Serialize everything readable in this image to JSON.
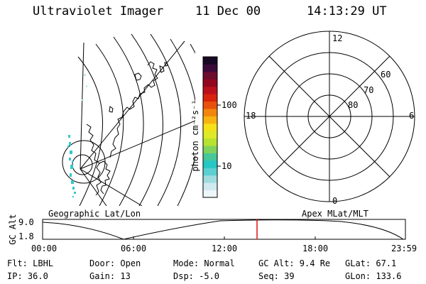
{
  "header": {
    "instrument": "Ultraviolet Imager",
    "date": "11 Dec 00",
    "time": "14:13:29 UT"
  },
  "colorbar": {
    "unit_label": "photon cm⁻²s⁻¹",
    "ticks": [
      "100",
      "10"
    ],
    "colors": [
      "#eef6fa",
      "#cfe9ef",
      "#9fdcdf",
      "#5ccfd0",
      "#25c7c4",
      "#46c79a",
      "#7fd35c",
      "#b7e22f",
      "#dde929",
      "#f6e018",
      "#f7b310",
      "#f2860d",
      "#e8500d",
      "#d8230d",
      "#bb0f1c",
      "#93061f",
      "#6c0c2e",
      "#3b0a3a",
      "#170924"
    ]
  },
  "geo_map": {
    "label": "Geographic Lat/Lon"
  },
  "polar_plot": {
    "label": "Apex MLat/MLT",
    "mlt_labels": {
      "top": "12",
      "left": "18",
      "right": "6",
      "bottom": "0"
    },
    "mlat_labels": [
      "60",
      "70",
      "80"
    ]
  },
  "altitude_plot": {
    "ylabel": "GC Alt",
    "ytick_top": "9.0",
    "ytick_bottom": "1.8",
    "xticks": [
      "00:00",
      "06:00",
      "12:00",
      "18:00",
      "23:59"
    ],
    "marker_color": "#e01010",
    "curve_color": "#000000"
  },
  "info": {
    "flt": "Flt: LBHL",
    "ip": "IP: 36.0",
    "door": "Door: Open",
    "gain": "Gain: 13",
    "mode": "Mode: Normal",
    "dsp": "Dsp:   -5.0",
    "gcalt": "GC Alt: 9.4 Re",
    "seq": "Seq: 39",
    "glat": "GLat:  67.1",
    "glon": "GLon: 133.6"
  }
}
